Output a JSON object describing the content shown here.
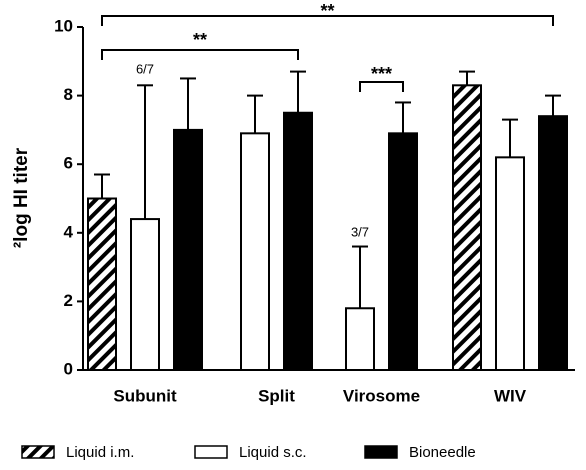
{
  "chart_data": {
    "type": "bar",
    "y_label": "²log HI titer",
    "categories": [
      "Subunit",
      "Split",
      "Virosome",
      "WIV"
    ],
    "ylim": [
      0,
      10
    ],
    "yticks": [
      0,
      2,
      4,
      6,
      8,
      10
    ],
    "series": [
      {
        "name": "Liquid i.m.",
        "color": "#000000",
        "pattern": "hatch",
        "values": [
          5.0,
          null,
          null,
          8.3
        ],
        "errors": [
          0.7,
          null,
          null,
          0.4
        ]
      },
      {
        "name": "Liquid s.c.",
        "color": "#ffffff",
        "values": [
          4.4,
          6.9,
          1.8,
          6.2
        ],
        "errors": [
          3.9,
          1.1,
          1.8,
          1.1
        ]
      },
      {
        "name": "Bioneedle",
        "color": "#000000",
        "values": [
          7.0,
          7.5,
          6.9,
          7.4
        ],
        "errors": [
          1.5,
          1.2,
          0.9,
          0.6
        ]
      }
    ],
    "annotations": [
      "6/7",
      "3/7",
      "**",
      "**",
      "***"
    ]
  }
}
